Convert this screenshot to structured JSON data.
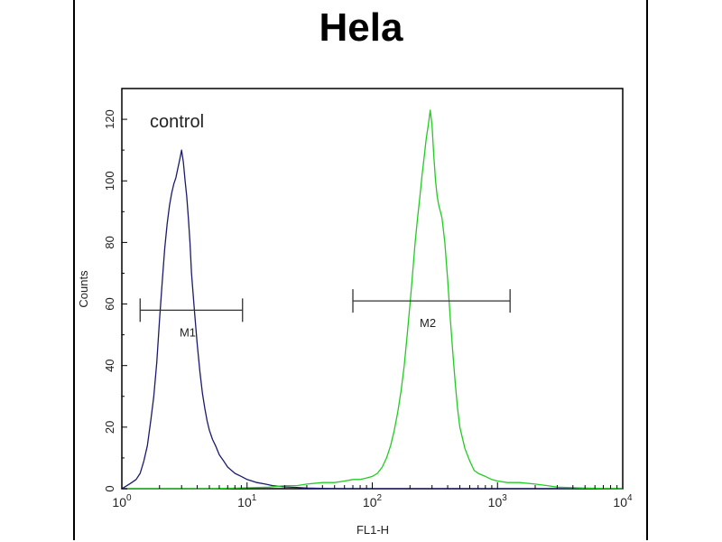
{
  "chart_data": {
    "type": "line",
    "title": "Hela",
    "xlabel": "FL1-H",
    "ylabel": "Counts",
    "xscale": "log",
    "xlim": [
      1,
      10000
    ],
    "ylim": [
      0,
      130
    ],
    "y_ticks": [
      0,
      20,
      40,
      60,
      80,
      100,
      120
    ],
    "x_ticks": [
      {
        "value": 1,
        "base": "10",
        "exp": "0"
      },
      {
        "value": 10,
        "base": "10",
        "exp": "1"
      },
      {
        "value": 100,
        "base": "10",
        "exp": "2"
      },
      {
        "value": 1000,
        "base": "10",
        "exp": "3"
      },
      {
        "value": 10000,
        "base": "10",
        "exp": "4"
      }
    ],
    "annotation": "control",
    "series": [
      {
        "color": "#1a1a6e",
        "x": [
          1.0,
          1.1,
          1.2,
          1.3,
          1.4,
          1.5,
          1.6,
          1.7,
          1.8,
          1.9,
          2.0,
          2.1,
          2.2,
          2.3,
          2.4,
          2.5,
          2.6,
          2.7,
          2.8,
          2.9,
          3.0,
          3.1,
          3.2,
          3.3,
          3.4,
          3.5,
          3.6,
          3.8,
          4.0,
          4.2,
          4.4,
          4.6,
          4.8,
          5.0,
          5.3,
          5.6,
          6.0,
          6.5,
          7.0,
          7.5,
          8.0,
          9.0,
          10,
          12,
          14,
          16,
          20,
          25,
          30,
          40,
          60,
          100,
          200,
          500,
          1000,
          3000,
          10000
        ],
        "y": [
          0,
          1,
          2,
          3,
          5,
          9,
          14,
          22,
          30,
          41,
          55,
          67,
          78,
          86,
          92,
          96,
          99,
          101,
          104,
          107,
          110,
          106,
          100,
          95,
          88,
          80,
          70,
          58,
          47,
          38,
          31,
          26,
          22,
          19,
          16,
          14,
          11,
          9,
          7,
          6,
          5,
          4,
          3,
          2,
          1.5,
          1,
          0.6,
          0.4,
          0.2,
          0.1,
          0,
          0,
          0,
          0,
          0,
          0,
          0
        ]
      },
      {
        "color": "#22cc22",
        "x": [
          1,
          5,
          10,
          15,
          20,
          25,
          30,
          40,
          50,
          60,
          70,
          80,
          90,
          100,
          110,
          120,
          130,
          140,
          150,
          160,
          170,
          180,
          190,
          200,
          210,
          220,
          230,
          240,
          250,
          260,
          270,
          280,
          290,
          300,
          310,
          320,
          330,
          340,
          350,
          360,
          380,
          400,
          420,
          440,
          460,
          480,
          500,
          550,
          600,
          650,
          700,
          800,
          900,
          1000,
          1200,
          1500,
          2000,
          2500,
          3000,
          5000,
          10000
        ],
        "y": [
          0,
          0,
          0.3,
          0.5,
          1,
          1,
          1.5,
          2,
          2,
          2.5,
          3,
          3,
          3.5,
          4,
          5,
          7,
          10,
          14,
          19,
          25,
          32,
          40,
          50,
          60,
          70,
          80,
          88,
          95,
          102,
          108,
          114,
          118,
          123,
          118,
          108,
          100,
          95,
          92,
          90,
          88,
          80,
          68,
          55,
          44,
          34,
          26,
          20,
          13,
          9,
          6,
          5,
          4,
          3,
          2.5,
          2,
          2,
          1.5,
          1,
          0.5,
          0.2,
          0
        ]
      }
    ],
    "markers": [
      {
        "label": "M1",
        "x1": 1.4,
        "x2": 9.2,
        "y": 58
      },
      {
        "label": "M2",
        "x1": 70,
        "x2": 1260,
        "y": 61
      }
    ]
  }
}
